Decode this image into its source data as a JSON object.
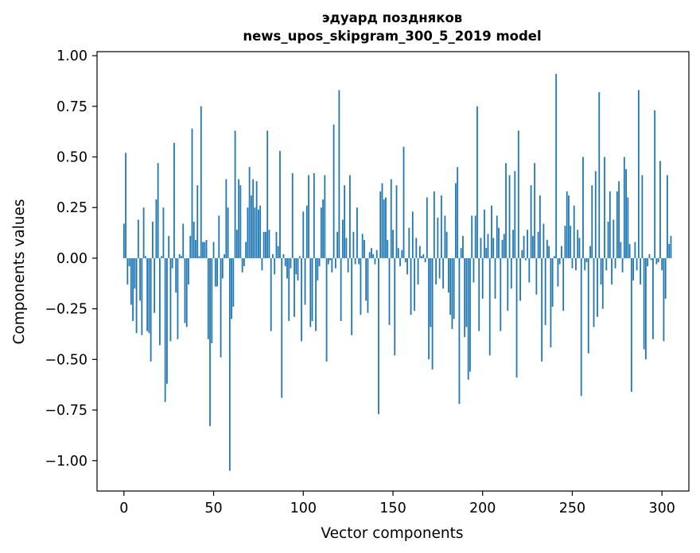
{
  "chart_data": {
    "type": "bar",
    "title": "эдуард поздняков",
    "subtitle": "news_upos_skipgram_300_5_2019 model",
    "xlabel": "Vector components",
    "ylabel": "Components values",
    "xlim": [
      -15,
      315
    ],
    "ylim": [
      -1.15,
      1.02
    ],
    "xticks": [
      0,
      50,
      100,
      150,
      200,
      250,
      300
    ],
    "yticks": [
      1.0,
      0.75,
      0.5,
      0.25,
      0.0,
      -0.25,
      -0.5,
      -0.75,
      -1.0
    ],
    "ytick_labels": [
      "1.00",
      "0.75",
      "0.50",
      "0.25",
      "0.00",
      "−0.25",
      "−0.50",
      "−0.75",
      "−1.00"
    ],
    "bar_color": "#1f77b4",
    "grid": false,
    "legend": "none",
    "values": [
      0.17,
      0.52,
      -0.13,
      -0.04,
      -0.23,
      -0.31,
      -0.15,
      -0.37,
      0.19,
      -0.21,
      -0.38,
      0.25,
      0.01,
      -0.36,
      -0.37,
      -0.51,
      0.18,
      -0.27,
      0.29,
      0.47,
      -0.43,
      0.01,
      0.25,
      -0.71,
      -0.62,
      0.11,
      -0.41,
      -0.05,
      0.57,
      -0.17,
      -0.4,
      0.02,
      0.01,
      0.17,
      -0.32,
      -0.34,
      -0.13,
      0.11,
      0.64,
      0.18,
      0.09,
      0.36,
      0.01,
      0.75,
      0.08,
      0.08,
      0.09,
      -0.4,
      -0.83,
      -0.42,
      0.08,
      -0.14,
      -0.14,
      0.21,
      -0.49,
      -0.1,
      0.02,
      0.39,
      0.25,
      -1.05,
      -0.3,
      -0.24,
      0.63,
      0.14,
      0.39,
      0.36,
      -0.07,
      -0.04,
      0.08,
      0.25,
      0.45,
      0.31,
      0.39,
      0.25,
      0.38,
      0.24,
      0.26,
      -0.06,
      0.13,
      0.13,
      0.63,
      0.14,
      -0.36,
      0.02,
      -0.08,
      0.13,
      0.06,
      0.53,
      -0.69,
      0.02,
      -0.04,
      -0.1,
      -0.31,
      -0.05,
      0.42,
      -0.29,
      -0.08,
      -0.11,
      0.01,
      -0.41,
      0.23,
      -0.23,
      0.26,
      0.41,
      -0.34,
      -0.31,
      0.42,
      -0.36,
      -0.11,
      -0.04,
      0.25,
      0.29,
      0.41,
      -0.51,
      -0.03,
      -0.01,
      -0.07,
      0.66,
      -0.05,
      0.13,
      0.83,
      -0.31,
      0.19,
      0.36,
      0.1,
      -0.07,
      0.41,
      -0.38,
      0.13,
      -0.03,
      0.25,
      -0.03,
      -0.28,
      0.12,
      0.09,
      -0.21,
      -0.27,
      0.03,
      0.05,
      0.02,
      -0.03,
      0.04,
      -0.77,
      0.33,
      0.37,
      0.29,
      0.3,
      0.09,
      -0.33,
      0.39,
      0.14,
      -0.48,
      0.36,
      0.05,
      -0.04,
      0.04,
      0.55,
      -0.02,
      -0.08,
      0.15,
      -0.28,
      0.23,
      -0.26,
      0.1,
      -0.13,
      0.06,
      0.01,
      0.02,
      -0.02,
      0.3,
      -0.5,
      -0.34,
      -0.55,
      0.33,
      -0.13,
      0.2,
      -0.1,
      0.31,
      -0.15,
      0.21,
      0.13,
      -0.17,
      -0.28,
      -0.35,
      -0.3,
      0.37,
      0.45,
      -0.72,
      0.05,
      0.11,
      -0.39,
      -0.34,
      -0.6,
      -0.56,
      0.21,
      -0.12,
      0.21,
      0.75,
      -0.36,
      0.1,
      -0.2,
      0.24,
      0.05,
      0.12,
      -0.48,
      0.26,
      0.1,
      -0.2,
      0.21,
      0.15,
      -0.36,
      0.09,
      0.12,
      0.47,
      -0.26,
      0.41,
      -0.15,
      0.14,
      0.43,
      -0.59,
      0.63,
      -0.21,
      0.04,
      0.11,
      -0.01,
      0.14,
      -0.12,
      0.36,
      0.11,
      0.47,
      -0.18,
      0.13,
      0.31,
      -0.51,
      0.17,
      -0.33,
      0.09,
      0.06,
      -0.44,
      -0.24,
      0.01,
      0.91,
      -0.14,
      -0.03,
      0.06,
      -0.26,
      0.16,
      0.33,
      0.31,
      0.16,
      -0.05,
      0.26,
      -0.06,
      0.14,
      0.1,
      -0.68,
      0.5,
      -0.06,
      -0.02,
      -0.47,
      0.06,
      0.36,
      -0.34,
      0.43,
      -0.29,
      0.82,
      -0.13,
      -0.25,
      0.5,
      -0.06,
      0.18,
      0.33,
      -0.13,
      0.19,
      -0.05,
      0.33,
      0.38,
      0.08,
      -0.07,
      0.5,
      0.44,
      0.3,
      0.07,
      -0.66,
      -0.11,
      0.08,
      -0.06,
      0.83,
      -0.13,
      0.41,
      -0.45,
      -0.5,
      -0.04,
      0.02,
      -0.01,
      -0.4,
      0.73,
      -0.03,
      -0.02,
      0.48,
      -0.06,
      -0.41,
      -0.2,
      0.41,
      0.07,
      0.11
    ]
  }
}
